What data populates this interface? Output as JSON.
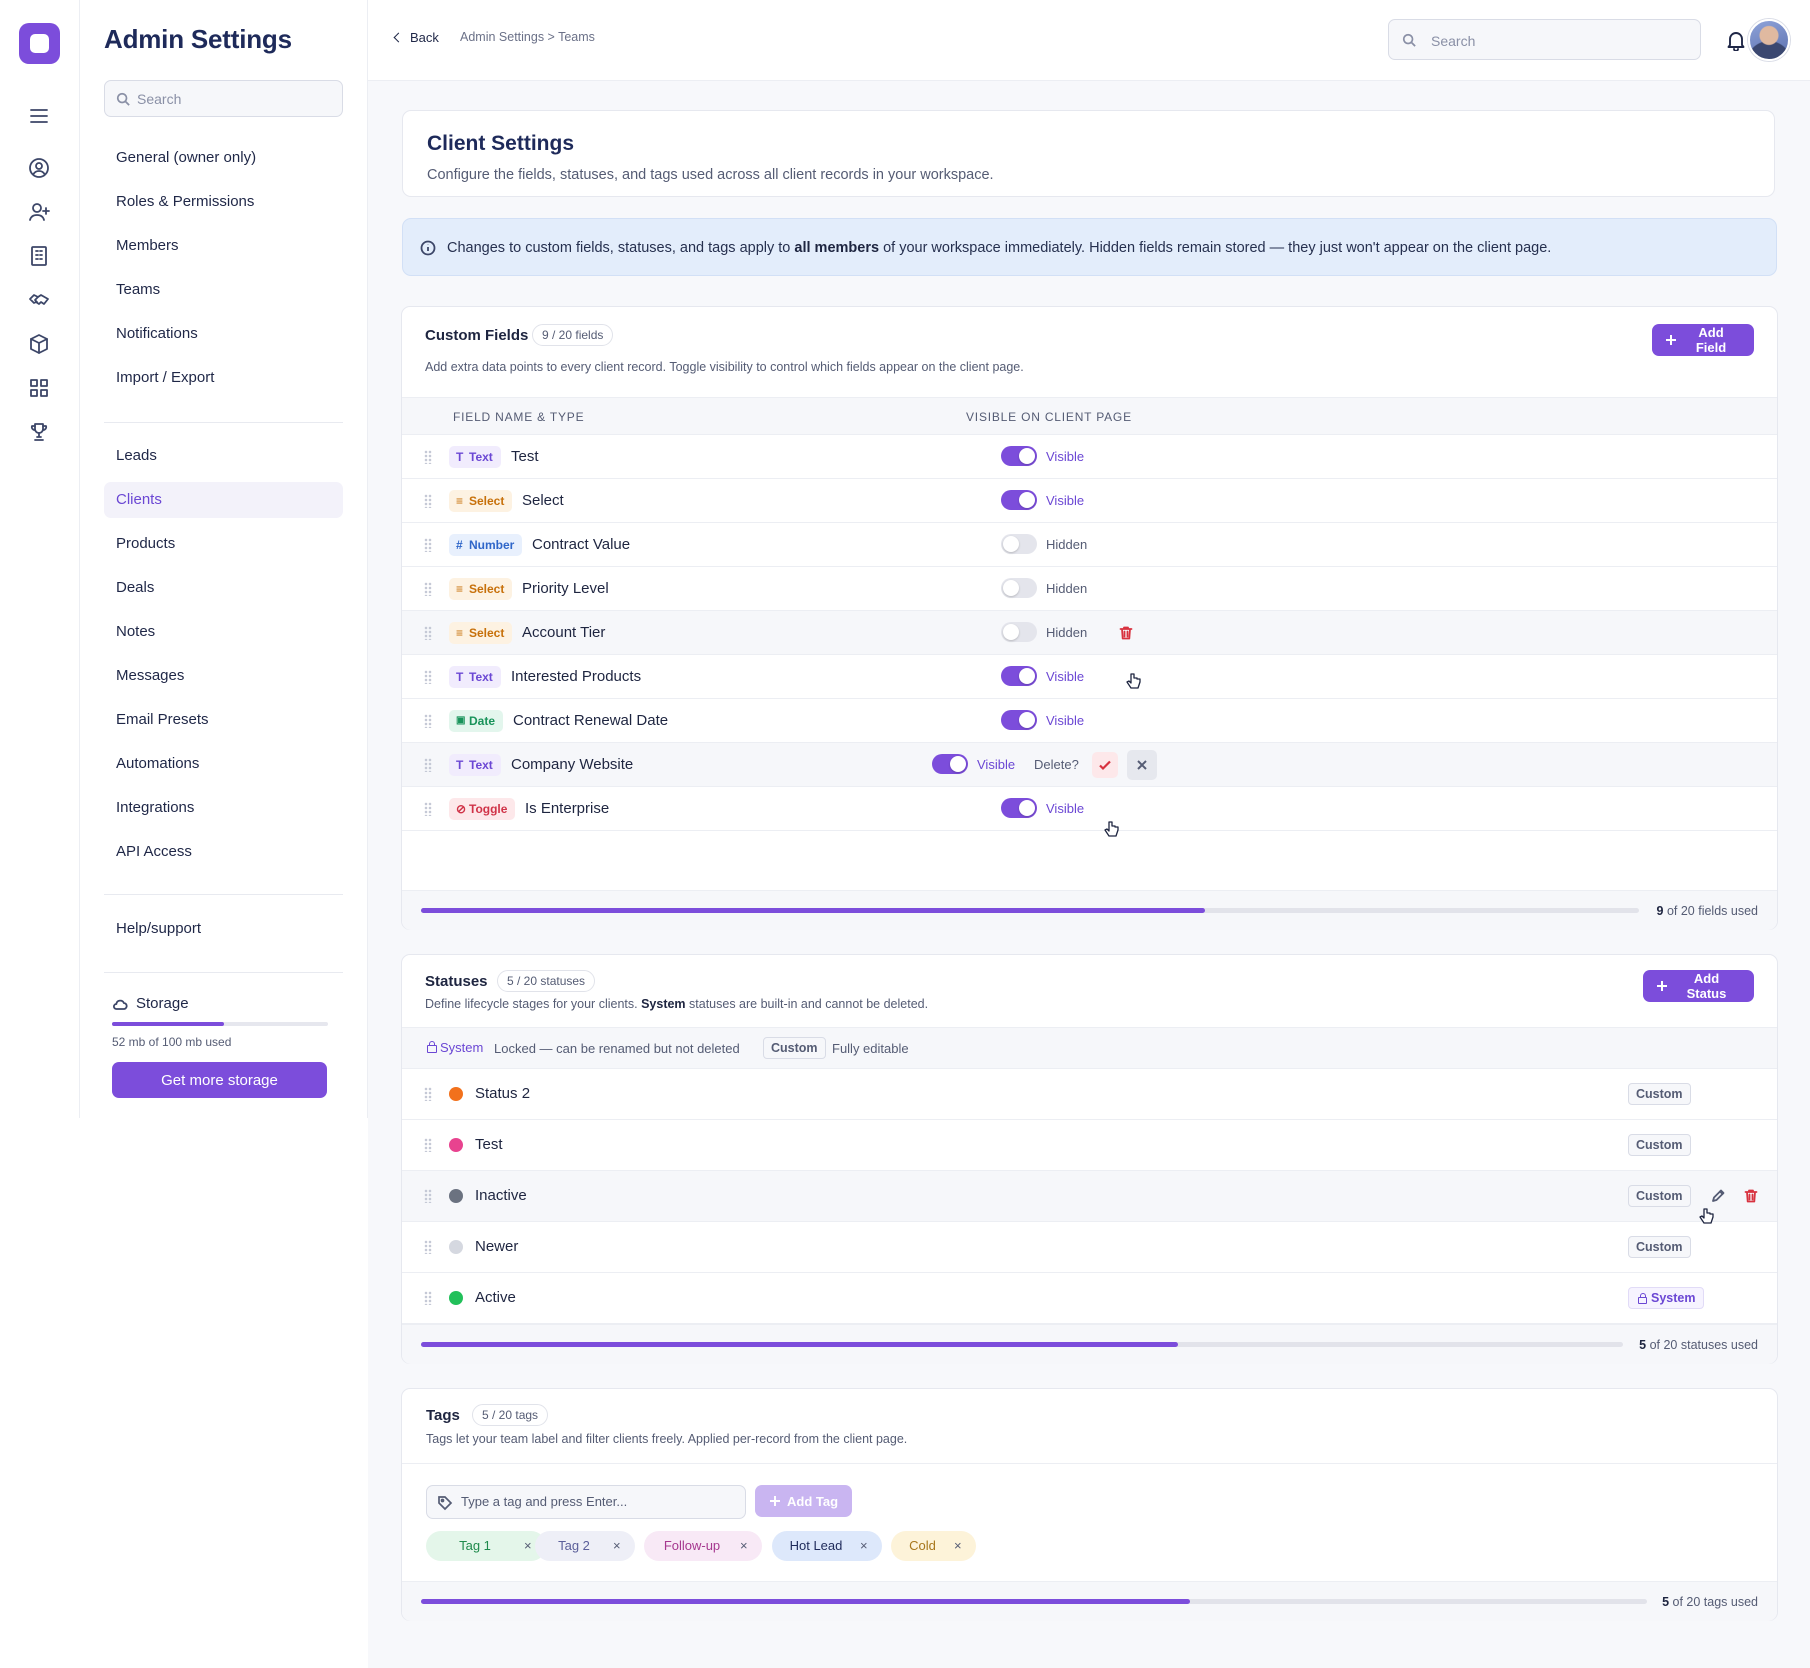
{
  "rail": {
    "icons": [
      "menu-icon",
      "user-circle-icon",
      "user-plus-icon",
      "building-icon",
      "handshake-icon",
      "box-icon",
      "grid-icon",
      "trophy-icon"
    ]
  },
  "sidebar": {
    "title": "Admin Settings",
    "search_placeholder": "Search",
    "group1": [
      "General (owner only)",
      "Roles & Permissions",
      "Members",
      "Teams",
      "Notifications",
      "Import / Export"
    ],
    "group2": [
      "Leads",
      "Clients",
      "Products",
      "Deals",
      "Notes",
      "Messages",
      "Email Presets",
      "Automations",
      "Integrations",
      "API Access"
    ],
    "active": "Clients",
    "help": "Help/support",
    "storage": {
      "label": "Storage",
      "used_text": "52 mb of 100 mb used",
      "used_fraction": 0.52,
      "button": "Get more storage"
    }
  },
  "topbar": {
    "back": "Back",
    "breadcrumb": "Admin Settings > Teams",
    "search_placeholder": "Search"
  },
  "page": {
    "title": "Client Settings",
    "subtitle": "Configure the fields, statuses, and tags used across all client records in your workspace."
  },
  "info": {
    "before": "Changes to custom fields, statuses, and tags apply to ",
    "bold": "all members",
    "after": " of your workspace immediately. Hidden fields remain stored — they just won't appear on the client page."
  },
  "custom_fields": {
    "title": "Custom Fields",
    "count_pill": "9 / 20 fields",
    "subtitle": "Add extra data points to every client record. Toggle visibility to control which fields appear on the client page.",
    "add_button": "Add Field",
    "col_name": "FIELD NAME & TYPE",
    "col_visible": "VISIBLE ON CLIENT PAGE",
    "delete_prompt": "Delete?",
    "rows": [
      {
        "type": "Text",
        "name": "Test",
        "visible": true,
        "state": "Visible"
      },
      {
        "type": "Select",
        "name": "Select",
        "visible": true,
        "state": "Visible"
      },
      {
        "type": "Number",
        "name": "Contract Value",
        "visible": false,
        "state": "Hidden"
      },
      {
        "type": "Select",
        "name": "Priority Level",
        "visible": false,
        "state": "Hidden"
      },
      {
        "type": "Select",
        "name": "Account Tier",
        "visible": false,
        "state": "Hidden"
      },
      {
        "type": "Text",
        "name": "Interested Products",
        "visible": true,
        "state": "Visible"
      },
      {
        "type": "Date",
        "name": "Contract Renewal Date",
        "visible": true,
        "state": "Visible"
      },
      {
        "type": "Text",
        "name": "Company Website",
        "visible": true,
        "state": "Visible"
      },
      {
        "type": "Toggle",
        "name": "Is Enterprise",
        "visible": true,
        "state": "Visible"
      }
    ],
    "used": 9,
    "max": 20,
    "used_suffix": " of 20 fields used"
  },
  "statuses": {
    "title": "Statuses",
    "count_pill": "5 / 20 statuses",
    "subtitle_before": "Define lifecycle stages for your clients. ",
    "subtitle_bold": "System",
    "subtitle_after": " statuses are built-in and cannot be deleted.",
    "add_button": "Add Status",
    "legend_system": "System",
    "legend_system_text": "Locked — can be renamed but not deleted",
    "legend_custom": "Custom",
    "legend_custom_text": "Fully editable",
    "rows": [
      {
        "name": "Status 2",
        "color": "#f2711c",
        "kind": "Custom"
      },
      {
        "name": "Test",
        "color": "#e8438f",
        "kind": "Custom"
      },
      {
        "name": "Inactive",
        "color": "#6b7280",
        "kind": "Custom"
      },
      {
        "name": "Newer",
        "color": "#d5d8e0",
        "kind": "Custom"
      },
      {
        "name": "Active",
        "color": "#22c05a",
        "kind": "System"
      }
    ],
    "used": 5,
    "max": 20,
    "used_suffix": " of 20 statuses used"
  },
  "tags": {
    "title": "Tags",
    "count_pill": "5 / 20 tags",
    "subtitle": "Tags let your team label and filter clients freely. Applied per-record from the client page.",
    "input_placeholder": "Type a tag and press Enter...",
    "add_button": "Add Tag",
    "items": [
      {
        "label": "Tag 1",
        "bg": "#e4f6ea",
        "fg": "#1f8a4c"
      },
      {
        "label": "Tag 2",
        "bg": "#eeeff7",
        "fg": "#5b5f9a"
      },
      {
        "label": "Follow-up",
        "bg": "#f8e9f6",
        "fg": "#a6388f"
      },
      {
        "label": "Hot Lead",
        "bg": "#dde8fb",
        "fg": "#1e2a5a"
      },
      {
        "label": "Cold",
        "bg": "#fdf3d9",
        "fg": "#a8771c"
      }
    ],
    "used": 5,
    "max": 20,
    "used_suffix": " of 20 tags used"
  },
  "colors": {
    "accent": "#7c4ddb",
    "danger": "#d8323f"
  }
}
